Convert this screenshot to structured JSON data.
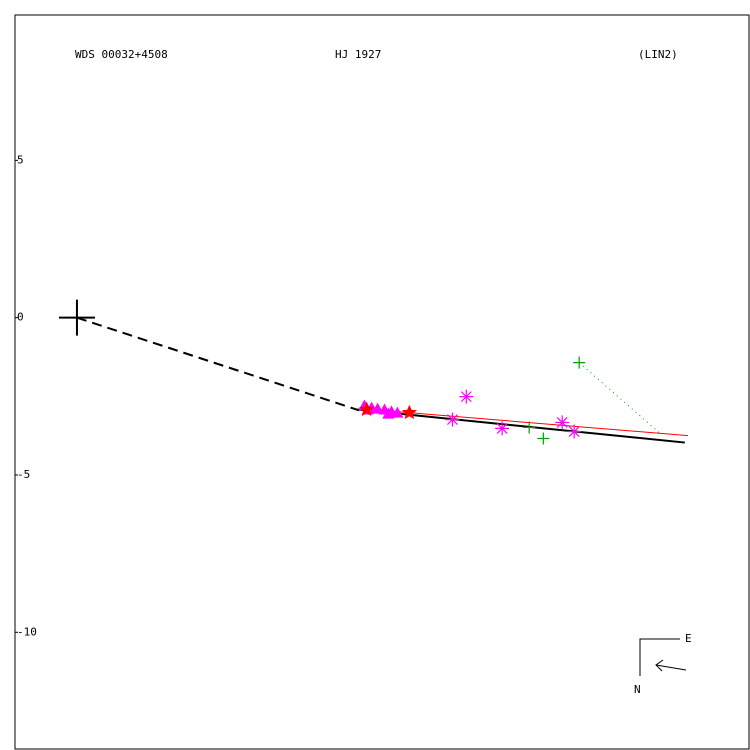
{
  "chart_data": {
    "type": "scatter",
    "labels": {
      "wds": "WDS 00032+4508",
      "name": "HJ 1927",
      "ref": "(LIN2)"
    },
    "compass": {
      "east": "E",
      "north": "N"
    },
    "xlim": [
      -1.97,
      21.37
    ],
    "ylim": [
      -13.71,
      9.62
    ],
    "yticks": [
      5,
      0,
      -5,
      -10
    ],
    "primary": {
      "x": 0,
      "y": 0,
      "color": "#000000"
    },
    "lines": [
      {
        "style": "dashed",
        "color": "#000000",
        "width": 2,
        "x": [
          0,
          8.98
        ],
        "y": [
          0,
          -2.95
        ]
      },
      {
        "style": "solid",
        "color": "#000000",
        "width": 2,
        "x": [
          8.92,
          19.33
        ],
        "y": [
          -2.92,
          -3.97
        ]
      },
      {
        "style": "solid",
        "color": "#ff0000",
        "width": 1,
        "x": [
          8.98,
          19.43
        ],
        "y": [
          -2.89,
          -3.75
        ]
      },
      {
        "style": "dotted",
        "color": "#00a000",
        "width": 1,
        "x": [
          15.97,
          18.51
        ],
        "y": [
          -1.43,
          -3.65
        ]
      }
    ],
    "series": [
      {
        "marker": "triangle",
        "color": "#ff00ff",
        "x": [
          9.14,
          9.37,
          9.56,
          9.78,
          10.0,
          10.19,
          9.24,
          9.9
        ],
        "y": [
          -2.79,
          -2.86,
          -2.89,
          -2.92,
          -2.98,
          -3.02,
          -2.92,
          -3.05
        ]
      },
      {
        "marker": "star",
        "color": "#ff0000",
        "x": [
          9.21,
          10.57
        ],
        "y": [
          -2.92,
          -3.02
        ]
      },
      {
        "marker": "asterisk",
        "color": "#ff00ff",
        "x": [
          11.94,
          12.38,
          13.52,
          15.43,
          15.81
        ],
        "y": [
          -3.24,
          -2.51,
          -3.52,
          -3.33,
          -3.62
        ]
      },
      {
        "marker": "plus",
        "color": "#00a000",
        "x": [
          14.83,
          15.97,
          14.38
        ],
        "y": [
          -3.84,
          -1.43,
          -3.49
        ]
      }
    ]
  }
}
